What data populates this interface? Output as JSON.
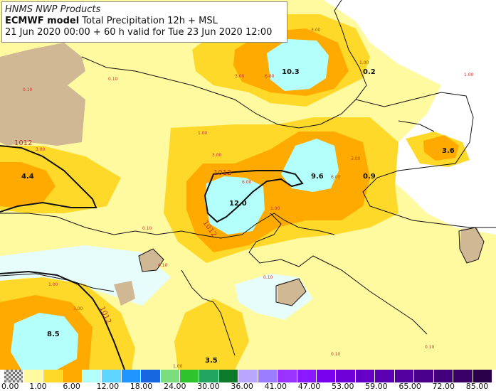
{
  "header": {
    "line1": "HNMS NWP Products",
    "model": "ECMWF model",
    "product": " Total Precipitation 12h + MSL",
    "line3": "21 Jun 2020 00:00 + 60 h valid for Tue 23 Jun 2020 12:00"
  },
  "map": {
    "maxima": [
      "10.3",
      "0.2",
      "4.4",
      "9.6",
      "0.9",
      "12.0",
      "3.6",
      "8.5",
      "3.5"
    ],
    "contour_small_labels": [
      "3.00",
      "1.00",
      "0.10",
      "6.00"
    ],
    "isobar_labels": [
      "1012",
      "1012",
      "1012",
      "1012"
    ]
  },
  "legend": {
    "ticks": [
      "0.00",
      "1.00",
      "6.00",
      "12.00",
      "18.00",
      "24.00",
      "30.00",
      "36.00",
      "41.00",
      "47.00",
      "53.00",
      "59.00",
      "65.00",
      "72.00",
      "85.00"
    ],
    "colors": [
      "#9e9e9e",
      "#fffaa0",
      "#ffd92a",
      "#ffaa00",
      "#b3fffc",
      "#5fd6ff",
      "#1e95ff",
      "#1768e0",
      "#7bdc7b",
      "#2ec42e",
      "#22a55f",
      "#0b7a2b",
      "#b9a7ff",
      "#9b7dff",
      "#9a33ff",
      "#8a19ff",
      "#7a00f0",
      "#7000d8",
      "#6600c8",
      "#5c00b4",
      "#5400a0",
      "#4b008c",
      "#42007a",
      "#3a0068",
      "#2b004a"
    ]
  }
}
